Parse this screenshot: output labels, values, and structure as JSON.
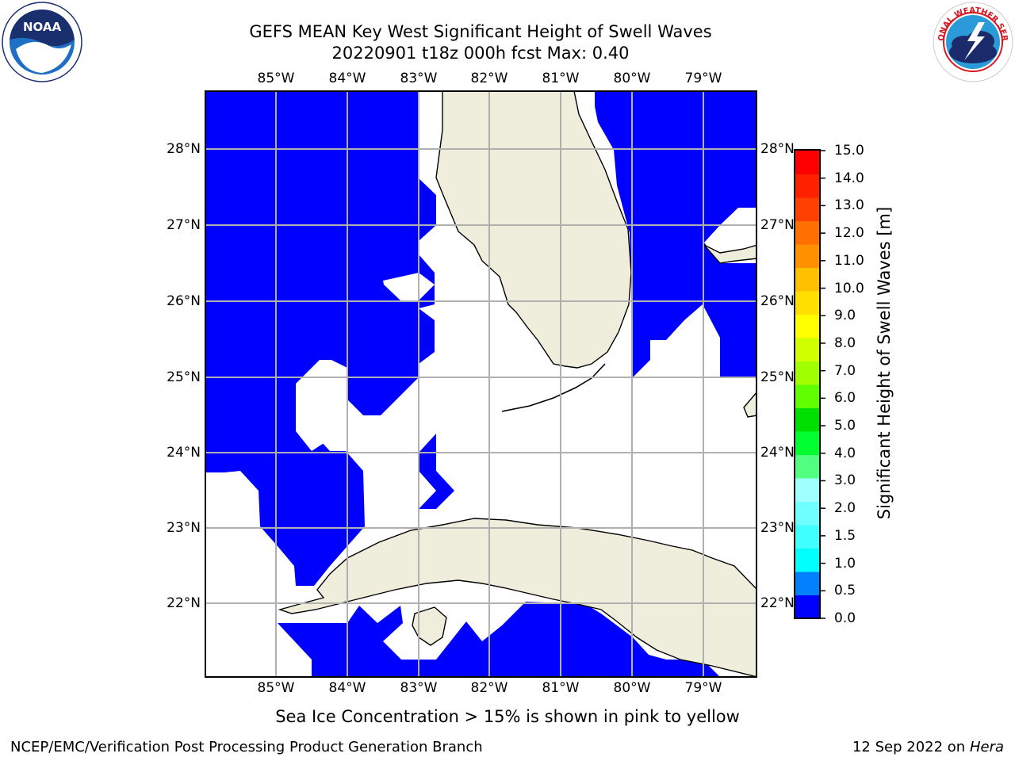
{
  "header": {
    "title_line1": "GEFS MEAN Key West Significant Height of Swell Waves",
    "title_line2": "20220901 t18z 000h fcst   Max: 0.40"
  },
  "logos": {
    "left": {
      "icon": "noaa-logo",
      "text": "NOAA",
      "ring_text": "NATIONAL OCEANIC AND ATMOSPHERIC ADMINISTRATION · U.S. DEPARTMENT OF COMMERCE"
    },
    "right": {
      "icon": "nws-logo",
      "ring_text": "NATIONAL WEATHER SERVICE"
    }
  },
  "map": {
    "lon_range": [
      -86.0,
      -78.3
    ],
    "lat_range": [
      21.0,
      28.8
    ],
    "lon_ticks": [
      "85°W",
      "84°W",
      "83°W",
      "82°W",
      "81°W",
      "80°W",
      "79°W"
    ],
    "lat_ticks": [
      "28°N",
      "27°N",
      "26°N",
      "25°N",
      "24°N",
      "23°N",
      "22°N"
    ],
    "colors": {
      "land": "#efeedc",
      "swell_lowest": "#0000ff",
      "grid": "#b0b0b0"
    }
  },
  "colorbar": {
    "label": "Significant Height of Swell Waves [m]",
    "ticks": [
      "15.0",
      "14.0",
      "13.0",
      "12.0",
      "11.0",
      "10.0",
      "9.0",
      "8.0",
      "7.0",
      "6.0",
      "5.0",
      "4.0",
      "3.0",
      "2.0",
      "1.5",
      "1.0",
      "0.5",
      "0.0"
    ],
    "colors": [
      "#0000ff",
      "#0080ff",
      "#00ffff",
      "#40ffff",
      "#70ffff",
      "#a0ffff",
      "#50ff80",
      "#00ff30",
      "#00e000",
      "#60ff00",
      "#a0ff00",
      "#d0ff00",
      "#ffff00",
      "#ffe000",
      "#ffc000",
      "#ff9000",
      "#ff7000",
      "#ff4000",
      "#ff2000",
      "#ff0000"
    ]
  },
  "footer": {
    "note": "Sea Ice Concentration > 15% is shown in pink to yellow",
    "left": "NCEP/EMC/Verification Post Processing Product Generation Branch",
    "date": "12 Sep 2022 on",
    "machine": "Hera"
  }
}
